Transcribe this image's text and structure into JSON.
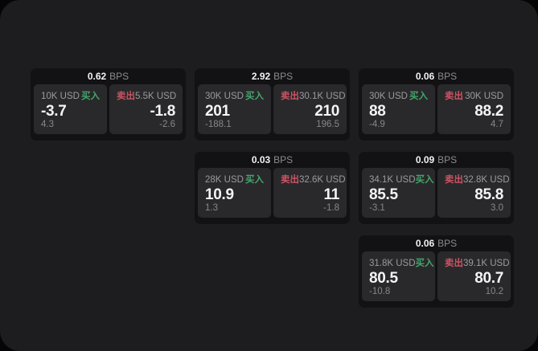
{
  "labels": {
    "bps_unit": "BPS",
    "buy": "买入",
    "sell": "卖出"
  },
  "colors": {
    "outer_background": "#050505",
    "page_background": "#1d1d1f",
    "card_background": "#121214",
    "panel_background": "#29292b",
    "buy_green": "#45a56c",
    "sell_red": "#cc5363",
    "text_primary": "#f4f4f5",
    "text_secondary": "#9b9b9f"
  },
  "cards": [
    {
      "bps": "0.62",
      "buy_size": "10K USD",
      "buy_price": "-3.7",
      "buy_sub": "4.3",
      "sell_size": "5.5K USD",
      "sell_price": "-1.8",
      "sell_sub": "-2.6"
    },
    {
      "bps": "2.92",
      "buy_size": "30K USD",
      "buy_price": "201",
      "buy_sub": "-188.1",
      "sell_size": "30.1K USD",
      "sell_price": "210",
      "sell_sub": "196.5"
    },
    {
      "bps": "0.06",
      "buy_size": "30K USD",
      "buy_price": "88",
      "buy_sub": "-4.9",
      "sell_size": "30K USD",
      "sell_price": "88.2",
      "sell_sub": "4.7"
    },
    {
      "bps": "0.03",
      "buy_size": "28K USD",
      "buy_price": "10.9",
      "buy_sub": "1.3",
      "sell_size": "32.6K USD",
      "sell_price": "11",
      "sell_sub": "-1.8"
    },
    {
      "bps": "0.09",
      "buy_size": "34.1K USD",
      "buy_price": "85.5",
      "buy_sub": "-3.1",
      "sell_size": "32.8K USD",
      "sell_price": "85.8",
      "sell_sub": "3.0"
    },
    {
      "bps": "0.06",
      "buy_size": "31.8K USD",
      "buy_price": "80.5",
      "buy_sub": "-10.8",
      "sell_size": "39.1K USD",
      "sell_price": "80.7",
      "sell_sub": "10.2"
    }
  ]
}
